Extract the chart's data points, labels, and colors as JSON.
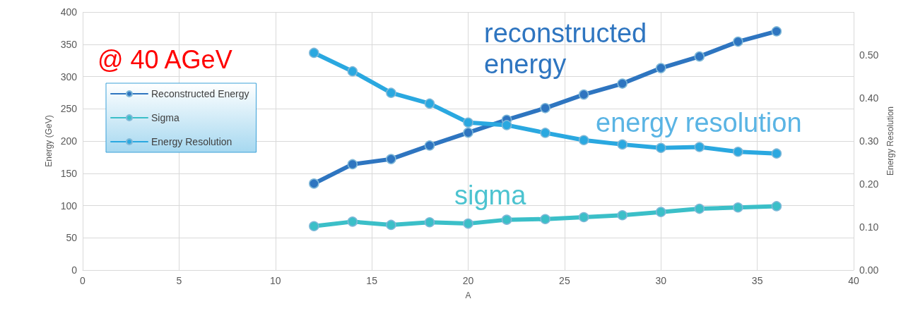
{
  "chart_data": {
    "type": "line",
    "x": [
      12,
      14,
      16,
      18,
      20,
      22,
      24,
      26,
      28,
      30,
      32,
      34,
      36
    ],
    "series": [
      {
        "name": "Reconstructed Energy",
        "color": "#2e75c0",
        "values": [
          134,
          164,
          172,
          193,
          213,
          233,
          251,
          272,
          289,
          313,
          331,
          354,
          370
        ]
      },
      {
        "name": "Sigma",
        "color": "#3bbfc8",
        "values": [
          68,
          75,
          70,
          74,
          72,
          78,
          79,
          82,
          85,
          90,
          95,
          97,
          99
        ]
      },
      {
        "name": "Energy Resolution",
        "color": "#2aa8e0",
        "axis": "y2",
        "values": [
          0.505,
          0.462,
          0.412,
          0.387,
          0.343,
          0.337,
          0.319,
          0.302,
          0.292,
          0.284,
          0.286,
          0.275,
          0.271
        ]
      }
    ],
    "xlabel": "A",
    "ylabel": "Energy (GeV)",
    "y2label": "Energy Resolution",
    "xlim": [
      0,
      40
    ],
    "xticks": [
      0,
      5,
      10,
      15,
      20,
      25,
      30,
      35,
      40
    ],
    "ylim": [
      0,
      400
    ],
    "yticks": [
      0,
      50,
      100,
      150,
      200,
      250,
      300,
      350,
      400
    ],
    "y2lim": [
      0,
      0.6
    ],
    "y2ticks": [
      {
        "value": 0,
        "label": "0.00"
      },
      {
        "value": 0.1,
        "label": "0.10"
      },
      {
        "value": 0.2,
        "label": "0.20"
      },
      {
        "value": 0.3,
        "label": "0.30"
      },
      {
        "value": 0.4,
        "label": "0.40"
      },
      {
        "value": 0.5,
        "label": "0.50"
      }
    ],
    "annotations": [
      "@ 40 AGeV",
      "reconstructed energy",
      "energy resolution",
      "sigma"
    ],
    "grid": true,
    "legend": "top left",
    "marker": "circle",
    "line_style": "solid"
  }
}
